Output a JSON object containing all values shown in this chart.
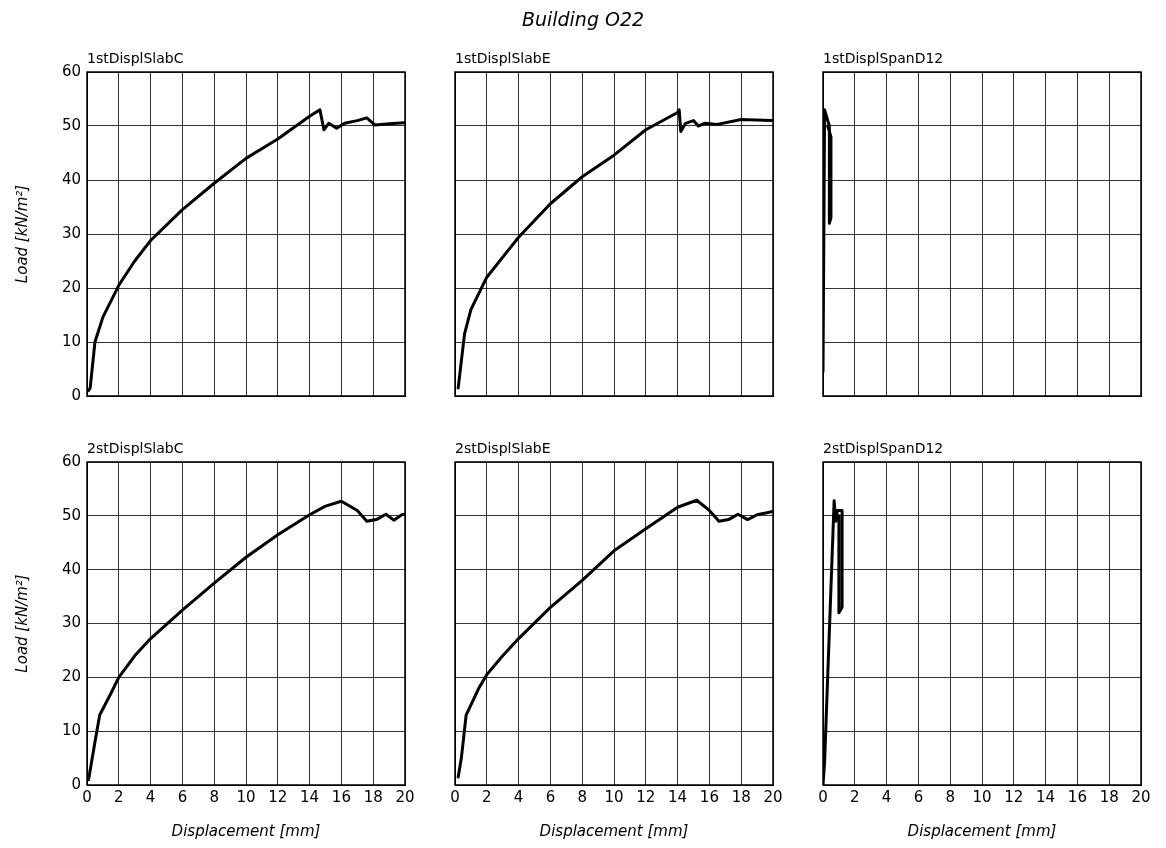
{
  "chart_data": [
    {
      "type": "line",
      "title": "1stDisplSlabC",
      "ylabel": "Load [kN/m²]",
      "xlim": [
        0,
        20
      ],
      "xticks": [
        0,
        2,
        4,
        6,
        8,
        10,
        12,
        14,
        16,
        18,
        20
      ],
      "ylim": [
        0,
        60
      ],
      "yticks": [
        0,
        10,
        20,
        30,
        40,
        50,
        60
      ],
      "grid": true,
      "tick_labels": "y",
      "marker": "none",
      "line_style": "solid",
      "series": [
        {
          "color": "#000000",
          "x": [
            0.1,
            0.2,
            0.5,
            1,
            2,
            3,
            4,
            6,
            8,
            10,
            12,
            14,
            14.65,
            14.9,
            15.2,
            15.7,
            16.2,
            17,
            17.6,
            18.1,
            19,
            20
          ],
          "values": [
            1,
            1.5,
            10,
            14.6,
            20.5,
            25,
            28.8,
            34.5,
            39.4,
            44,
            47.6,
            51.8,
            53,
            49.3,
            50.5,
            49.6,
            50.5,
            51,
            51.5,
            50.2,
            50.4,
            50.6
          ]
        }
      ]
    },
    {
      "type": "line",
      "title": "1stDisplSlabE",
      "xlim": [
        0,
        20
      ],
      "xticks": [
        0,
        2,
        4,
        6,
        8,
        10,
        12,
        14,
        16,
        18,
        20
      ],
      "ylim": [
        0,
        60
      ],
      "yticks": [
        0,
        10,
        20,
        30,
        40,
        50,
        60
      ],
      "grid": true,
      "tick_labels": false,
      "marker": "none",
      "line_style": "solid",
      "series": [
        {
          "color": "#000000",
          "x": [
            0.2,
            0.6,
            1,
            2,
            4,
            6,
            8,
            10,
            12,
            14,
            14.1,
            14.2,
            14.5,
            15,
            15.3,
            15.7,
            16.5,
            18,
            20
          ],
          "values": [
            1.5,
            11.5,
            16,
            22,
            29.4,
            35.6,
            40.6,
            44.6,
            49.3,
            52.5,
            53,
            49,
            50.5,
            51,
            50,
            50.5,
            50.3,
            51.2,
            51
          ]
        }
      ]
    },
    {
      "type": "line",
      "title": "1stDisplSpanD12",
      "xlim": [
        0,
        20
      ],
      "xticks": [
        0,
        2,
        4,
        6,
        8,
        10,
        12,
        14,
        16,
        18,
        20
      ],
      "ylim": [
        0,
        60
      ],
      "yticks": [
        0,
        10,
        20,
        30,
        40,
        50,
        60
      ],
      "grid": true,
      "tick_labels": false,
      "marker": "none",
      "line_style": "solid",
      "series": [
        {
          "color": "#000000",
          "x": [
            0,
            0.05,
            0.1,
            0.3,
            0.4,
            0.4,
            0.5,
            0.5,
            0.3
          ],
          "values": [
            4.5,
            4.5,
            53,
            51,
            50,
            32,
            33,
            48,
            50
          ]
        }
      ]
    },
    {
      "type": "line",
      "title": "2stDisplSlabC",
      "xlabel": "Displacement [mm]",
      "ylabel": "Load [kN/m²]",
      "xlim": [
        0,
        20
      ],
      "xticks": [
        0,
        2,
        4,
        6,
        8,
        10,
        12,
        14,
        16,
        18,
        20
      ],
      "ylim": [
        0,
        60
      ],
      "yticks": [
        0,
        10,
        20,
        30,
        40,
        50,
        60
      ],
      "grid": true,
      "marker": "none",
      "line_style": "solid",
      "series": [
        {
          "color": "#000000",
          "x": [
            0.1,
            0.5,
            0.8,
            1.5,
            2,
            3,
            4,
            6,
            8,
            10,
            12,
            14,
            15,
            16,
            17,
            17.6,
            18.2,
            18.8,
            19.3,
            19.8,
            20
          ],
          "values": [
            1,
            8,
            13,
            17,
            20,
            24,
            27.2,
            32.5,
            37.5,
            42.3,
            46.5,
            50.2,
            51.8,
            52.7,
            51,
            49,
            49.3,
            50.3,
            49.2,
            50.2,
            50.3
          ]
        }
      ]
    },
    {
      "type": "line",
      "title": "2stDisplSlabE",
      "xlabel": "Displacement [mm]",
      "xlim": [
        0,
        20
      ],
      "xticks": [
        0,
        2,
        4,
        6,
        8,
        10,
        12,
        14,
        16,
        18,
        20
      ],
      "ylim": [
        0,
        60
      ],
      "yticks": [
        0,
        10,
        20,
        30,
        40,
        50,
        60
      ],
      "grid": true,
      "tick_labels": "x",
      "marker": "none",
      "line_style": "solid",
      "series": [
        {
          "color": "#000000",
          "x": [
            0.2,
            0.4,
            0.7,
            1.5,
            2,
            3,
            4,
            6,
            8,
            10,
            12,
            14,
            15.2,
            16,
            16.6,
            17.2,
            17.8,
            18.4,
            19,
            20
          ],
          "values": [
            1.5,
            5,
            13,
            18,
            20.5,
            24,
            27.2,
            33,
            38,
            43.5,
            47.6,
            51.6,
            52.9,
            51,
            49,
            49.3,
            50.3,
            49.3,
            50.2,
            50.8
          ]
        }
      ]
    },
    {
      "type": "line",
      "title": "2stDisplSpanD12",
      "xlabel": "Displacement [mm]",
      "xlim": [
        0,
        20
      ],
      "xticks": [
        0,
        2,
        4,
        6,
        8,
        10,
        12,
        14,
        16,
        18,
        20
      ],
      "ylim": [
        0,
        60
      ],
      "yticks": [
        0,
        10,
        20,
        30,
        40,
        50,
        60
      ],
      "grid": true,
      "tick_labels": "x",
      "marker": "none",
      "line_style": "solid",
      "series": [
        {
          "color": "#000000",
          "x": [
            0,
            0.1,
            0.7,
            0.8,
            0.9,
            1.2,
            1.2,
            1.0,
            1.0,
            0.8
          ],
          "values": [
            0,
            4.3,
            52.8,
            49,
            51,
            51,
            33,
            32,
            50,
            50
          ]
        }
      ]
    },
    {
      "type": "other",
      "title": "Building O22"
    }
  ]
}
